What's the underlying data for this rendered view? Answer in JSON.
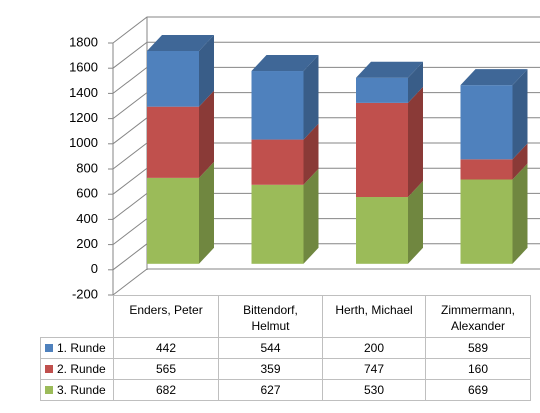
{
  "chart_data": {
    "type": "bar3d_stacked",
    "categories": [
      "Enders, Peter",
      "Bittendorf, Helmut",
      "Herth, Michael",
      "Zimmermann, Alexander"
    ],
    "series": [
      {
        "name": "1. Runde",
        "color": "#4f81bd",
        "values": [
          442,
          544,
          200,
          589
        ]
      },
      {
        "name": "2. Runde",
        "color": "#c0504d",
        "values": [
          565,
          359,
          747,
          160
        ]
      },
      {
        "name": "3. Runde",
        "color": "#9bbb59",
        "values": [
          682,
          627,
          530,
          669
        ]
      }
    ],
    "ylim": [
      -200,
      1800
    ],
    "yticks": [
      -200,
      0,
      200,
      400,
      600,
      800,
      1000,
      1200,
      1400,
      1600,
      1800
    ],
    "grid": true
  }
}
